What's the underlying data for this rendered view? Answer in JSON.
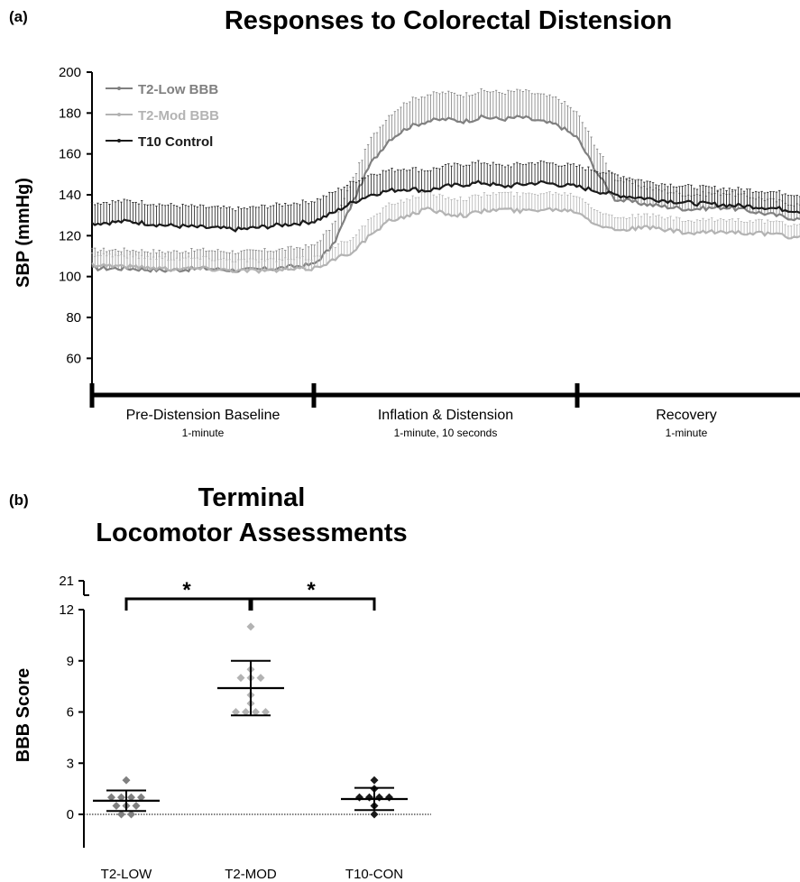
{
  "panels": {
    "a": {
      "letter": "(a)",
      "title": "Responses to Colorectal Distension",
      "ylabel": "SBP (mmHg)",
      "yticks": [
        60,
        80,
        100,
        120,
        140,
        160,
        180,
        200
      ],
      "phases": [
        {
          "label": "Pre-Distension Baseline",
          "sublabel": "1-minute"
        },
        {
          "label": "Inflation & Distension",
          "sublabel": "1-minute, 10 seconds"
        },
        {
          "label": "Recovery",
          "sublabel": "1-minute"
        }
      ]
    },
    "b": {
      "letter": "(b)",
      "title_line1": "Terminal",
      "title_line2": "Locomotor Assessments",
      "ylabel": "BBB Score",
      "yticks": [
        0,
        3,
        6,
        9,
        12
      ],
      "ybreak_tick": 21,
      "sig_mark": "*"
    }
  },
  "colors": {
    "t2_low": "#808080",
    "t2_mod": "#b3b3b3",
    "t10_control": "#1a1a1a"
  },
  "chart_data": [
    {
      "type": "line",
      "title": "Responses to Colorectal Distension",
      "ylabel": "SBP (mmHg)",
      "ylim": [
        50,
        200
      ],
      "x_segments": [
        "Pre-Distension Baseline",
        "Inflation & Distension",
        "Recovery"
      ],
      "segment_durations_s": [
        60,
        70,
        60
      ],
      "x": [
        0,
        10,
        20,
        30,
        40,
        50,
        60,
        65,
        70,
        75,
        80,
        85,
        90,
        95,
        100,
        105,
        110,
        115,
        120,
        125,
        130,
        135,
        140,
        150,
        160,
        170,
        180,
        190
      ],
      "legend": "top-left",
      "series": [
        {
          "name": "T2-Low BBB",
          "values": [
            104,
            104,
            103,
            104,
            103,
            104,
            106,
            115,
            135,
            155,
            167,
            173,
            176,
            177,
            176,
            178,
            177,
            178,
            176,
            174,
            168,
            152,
            138,
            135,
            133,
            134,
            131,
            128
          ],
          "error": [
            9,
            9,
            9,
            9,
            9,
            9,
            9,
            10,
            11,
            12,
            12,
            13,
            13,
            13,
            13,
            13,
            13,
            13,
            13,
            13,
            12,
            12,
            10,
            8,
            7,
            7,
            7,
            7
          ]
        },
        {
          "name": "T2-Mod BBB",
          "values": [
            106,
            105,
            104,
            104,
            103,
            103,
            104,
            108,
            112,
            120,
            127,
            130,
            133,
            131,
            130,
            132,
            133,
            132,
            133,
            133,
            132,
            126,
            123,
            124,
            121,
            122,
            121,
            119
          ],
          "error": [
            5,
            5,
            5,
            5,
            5,
            5,
            5,
            6,
            7,
            8,
            8,
            8,
            8,
            8,
            8,
            8,
            8,
            8,
            8,
            8,
            8,
            7,
            6,
            6,
            6,
            6,
            6,
            6
          ]
        },
        {
          "name": "T10 Control",
          "values": [
            126,
            127,
            125,
            124,
            123,
            125,
            127,
            131,
            136,
            140,
            142,
            143,
            142,
            144,
            145,
            146,
            144,
            145,
            146,
            145,
            144,
            142,
            140,
            138,
            136,
            135,
            134,
            132
          ],
          "error": [
            10,
            10,
            10,
            10,
            10,
            10,
            10,
            10,
            10,
            10,
            10,
            10,
            10,
            10,
            10,
            10,
            10,
            10,
            10,
            10,
            10,
            10,
            10,
            8,
            8,
            8,
            8,
            8
          ]
        }
      ]
    },
    {
      "type": "scatter",
      "title": "Terminal Locomotor Assessments",
      "ylabel": "BBB Score",
      "ylim": [
        0,
        12
      ],
      "y_break_to": 21,
      "categories": [
        "T2-LOW",
        "T2-MOD",
        "T10-CON"
      ],
      "points": [
        [
          0,
          0,
          0.5,
          0.5,
          0.5,
          1,
          1,
          1,
          1,
          2
        ],
        [
          6,
          6,
          6,
          6,
          6.5,
          7,
          8,
          8,
          8,
          8.5,
          11
        ],
        [
          0,
          0.5,
          1,
          1,
          1,
          1,
          1.5,
          2
        ]
      ],
      "mean": [
        0.8,
        7.4,
        0.9
      ],
      "sd": [
        0.6,
        1.6,
        0.65
      ],
      "significance": [
        {
          "between": [
            "T2-LOW",
            "T2-MOD"
          ],
          "mark": "*"
        },
        {
          "between": [
            "T2-MOD",
            "T10-CON"
          ],
          "mark": "*"
        }
      ]
    }
  ]
}
